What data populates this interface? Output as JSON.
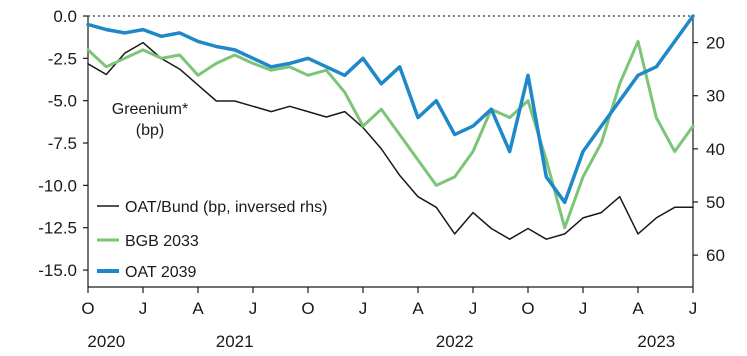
{
  "chart_data": {
    "type": "line",
    "title": "",
    "annotation": [
      "Greenium*",
      "(bp)"
    ],
    "y_left": {
      "ticks": [
        0.0,
        -2.5,
        -5.0,
        -7.5,
        -10.0,
        -12.5,
        -15.0
      ],
      "tick_labels": [
        "0.0",
        "-2.5",
        "-5.0",
        "-7.5",
        "-10.0",
        "-12.5",
        "-15.0"
      ],
      "ylim": [
        -16,
        0
      ]
    },
    "y_right": {
      "ticks": [
        20,
        30,
        40,
        50,
        60
      ],
      "tick_labels": [
        "20",
        "30",
        "40",
        "50",
        "60"
      ],
      "ylim": [
        15,
        66
      ],
      "inverted": true
    },
    "x_axis": {
      "range": [
        "2020-10",
        "2023-07"
      ],
      "month_ticks": [
        "2020-10",
        "2021-01",
        "2021-04",
        "2021-07",
        "2021-10",
        "2022-01",
        "2022-04",
        "2022-07",
        "2022-10",
        "2023-01",
        "2023-04",
        "2023-07"
      ],
      "month_labels": [
        "O",
        "J",
        "A",
        "J",
        "O",
        "J",
        "A",
        "J",
        "O",
        "J",
        "A",
        "J"
      ],
      "year_labels": [
        {
          "label": "2020",
          "at": "2020-11"
        },
        {
          "label": "2021",
          "at": "2021-06"
        },
        {
          "label": "2022",
          "at": "2022-06"
        },
        {
          "label": "2023",
          "at": "2023-05"
        }
      ]
    },
    "zero_line": "dotted",
    "legend_position": "bottom-left",
    "series": [
      {
        "name": "OAT/Bund (bp, inversed rhs)",
        "axis": "right",
        "color": "#1a1a1a",
        "style": "thin",
        "x": [
          "2020-10",
          "2020-11",
          "2020-12",
          "2021-01",
          "2021-02",
          "2021-03",
          "2021-04",
          "2021-05",
          "2021-06",
          "2021-07",
          "2021-08",
          "2021-09",
          "2021-10",
          "2021-11",
          "2021-12",
          "2022-01",
          "2022-02",
          "2022-03",
          "2022-04",
          "2022-05",
          "2022-06",
          "2022-07",
          "2022-08",
          "2022-09",
          "2022-10",
          "2022-11",
          "2022-12",
          "2023-01",
          "2023-02",
          "2023-03",
          "2023-04",
          "2023-05",
          "2023-06",
          "2023-07"
        ],
        "values": [
          24,
          26,
          22,
          20,
          23,
          25,
          28,
          31,
          31,
          32,
          33,
          32,
          33,
          34,
          33,
          36,
          40,
          45,
          49,
          51,
          56,
          52,
          55,
          57,
          55,
          57,
          56,
          53,
          52,
          49,
          56,
          53,
          51,
          51
        ]
      },
      {
        "name": "BGB 2033",
        "axis": "left",
        "color": "#7cc576",
        "style": "medium",
        "x": [
          "2020-10",
          "2020-11",
          "2020-12",
          "2021-01",
          "2021-02",
          "2021-03",
          "2021-04",
          "2021-05",
          "2021-06",
          "2021-07",
          "2021-08",
          "2021-09",
          "2021-10",
          "2021-11",
          "2021-12",
          "2022-01",
          "2022-02",
          "2022-03",
          "2022-04",
          "2022-05",
          "2022-06",
          "2022-07",
          "2022-08",
          "2022-09",
          "2022-10",
          "2022-11",
          "2022-12",
          "2023-01",
          "2023-02",
          "2023-03",
          "2023-04",
          "2023-05",
          "2023-06",
          "2023-07"
        ],
        "values": [
          -2.0,
          -3.0,
          -2.5,
          -2.0,
          -2.5,
          -2.3,
          -3.5,
          -2.8,
          -2.3,
          -2.8,
          -3.2,
          -3.0,
          -3.5,
          -3.2,
          -4.5,
          -6.5,
          -5.5,
          -7.0,
          -8.5,
          -10.0,
          -9.5,
          -8.0,
          -5.5,
          -6.0,
          -5.0,
          -8.5,
          -12.5,
          -9.5,
          -7.5,
          -4.0,
          -1.5,
          -6.0,
          -8.0,
          -6.5
        ]
      },
      {
        "name": "OAT 2039",
        "axis": "left",
        "color": "#1f88c8",
        "style": "thick",
        "x": [
          "2020-10",
          "2020-11",
          "2020-12",
          "2021-01",
          "2021-02",
          "2021-03",
          "2021-04",
          "2021-05",
          "2021-06",
          "2021-07",
          "2021-08",
          "2021-09",
          "2021-10",
          "2021-11",
          "2021-12",
          "2022-01",
          "2022-02",
          "2022-03",
          "2022-04",
          "2022-05",
          "2022-06",
          "2022-07",
          "2022-08",
          "2022-09",
          "2022-10",
          "2022-11",
          "2022-12",
          "2023-01",
          "2023-02",
          "2023-03",
          "2023-04",
          "2023-05",
          "2023-06",
          "2023-07"
        ],
        "values": [
          -0.5,
          -0.8,
          -1.0,
          -0.8,
          -1.2,
          -1.0,
          -1.5,
          -1.8,
          -2.0,
          -2.5,
          -3.0,
          -2.8,
          -2.5,
          -3.0,
          -3.5,
          -2.5,
          -4.0,
          -3.0,
          -6.0,
          -5.0,
          -7.0,
          -6.5,
          -5.5,
          -8.0,
          -3.5,
          -9.5,
          -11.0,
          -8.0,
          -6.5,
          -5.0,
          -3.5,
          -3.0,
          -1.5,
          0.0
        ]
      }
    ]
  }
}
